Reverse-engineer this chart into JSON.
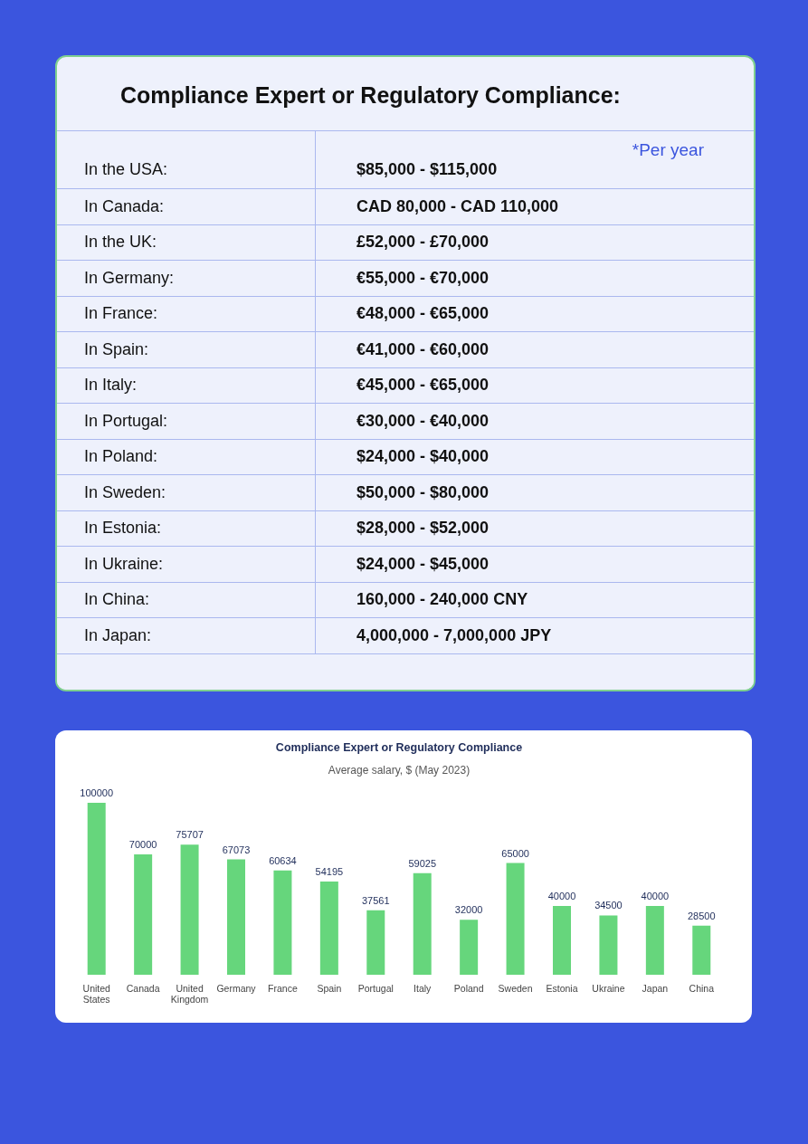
{
  "chart_data": [
    {
      "type": "other",
      "title": "Compliance Expert or Regulatory Compliance:",
      "annotations": [
        "*Per year",
        "In the USA:",
        "$85,000 - $115,000",
        "In Canada:",
        "CAD 80,000 - CAD 110,000",
        "In the UK:",
        "£52,000 - £70,000",
        "In Germany:",
        "€55,000 - €70,000",
        "In France:",
        "€48,000 - €65,000",
        "In Spain:",
        "€41,000 - €60,000",
        "In Italy:",
        "€45,000 - €65,000",
        "In Portugal:",
        "€30,000 - €40,000",
        "In Poland:",
        "$24,000 - $40,000",
        "In Sweden:",
        "$50,000 - $80,000",
        "In Estonia:",
        "$28,000 - $52,000",
        "In Ukraine:",
        "$24,000 - $45,000",
        "In China:",
        "160,000 - 240,000 CNY",
        "In Japan:",
        "4,000,000 - 7,000,000 JPY"
      ]
    },
    {
      "type": "bar",
      "title": "Compliance Expert or Regulatory Compliance",
      "subtitle": "Average salary, $ (May 2023)",
      "categories": [
        "United States",
        "Canada",
        "United Kingdom",
        "Germany",
        "France",
        "Spain",
        "Portugal",
        "Italy",
        "Poland",
        "Sweden",
        "Estonia",
        "Ukraine",
        "Japan",
        "China"
      ],
      "values": [
        100000,
        70000,
        75707,
        67073,
        60634,
        54195,
        37561,
        59025,
        32000,
        65000,
        40000,
        34500,
        40000,
        28500
      ],
      "color": "#66d67c",
      "data_labels": true,
      "tick_labels": "x"
    }
  ]
}
